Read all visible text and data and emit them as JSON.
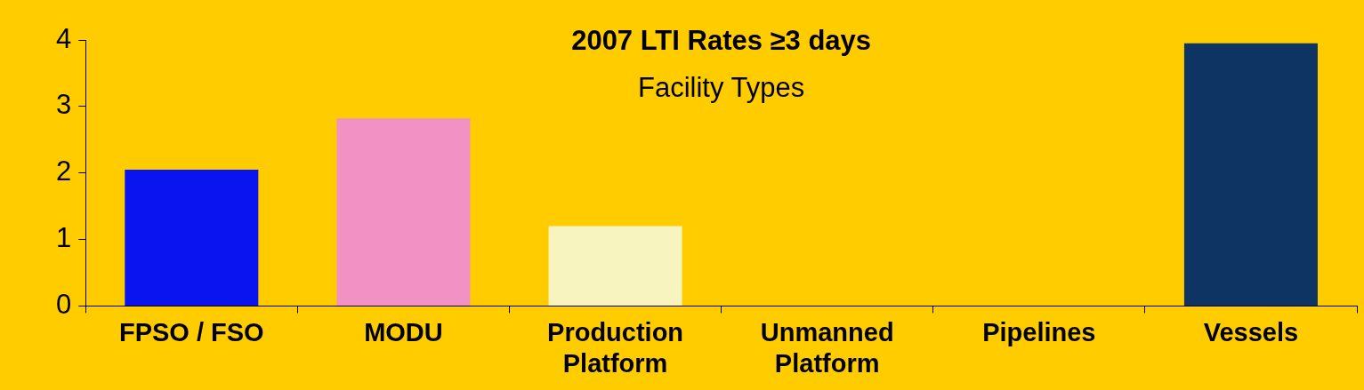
{
  "chart_data": {
    "type": "bar",
    "title": "2007 LTI Rates ≥3 days",
    "subtitle": "Facility Types",
    "categories": [
      "FPSO / FSO",
      "MODU",
      "Production Platform",
      "Unmanned Platform",
      "Pipelines",
      "Vessels"
    ],
    "values": [
      2.05,
      2.82,
      1.2,
      0,
      0,
      3.95
    ],
    "colors": [
      "#0a14f0",
      "#f291c4",
      "#f7f4c0",
      "#f0f0f0",
      "#f0f0f0",
      "#0d3463"
    ],
    "ylim": [
      0,
      4
    ],
    "yticks": [
      0,
      1,
      2,
      3,
      4
    ],
    "grid": false,
    "legend": false
  }
}
